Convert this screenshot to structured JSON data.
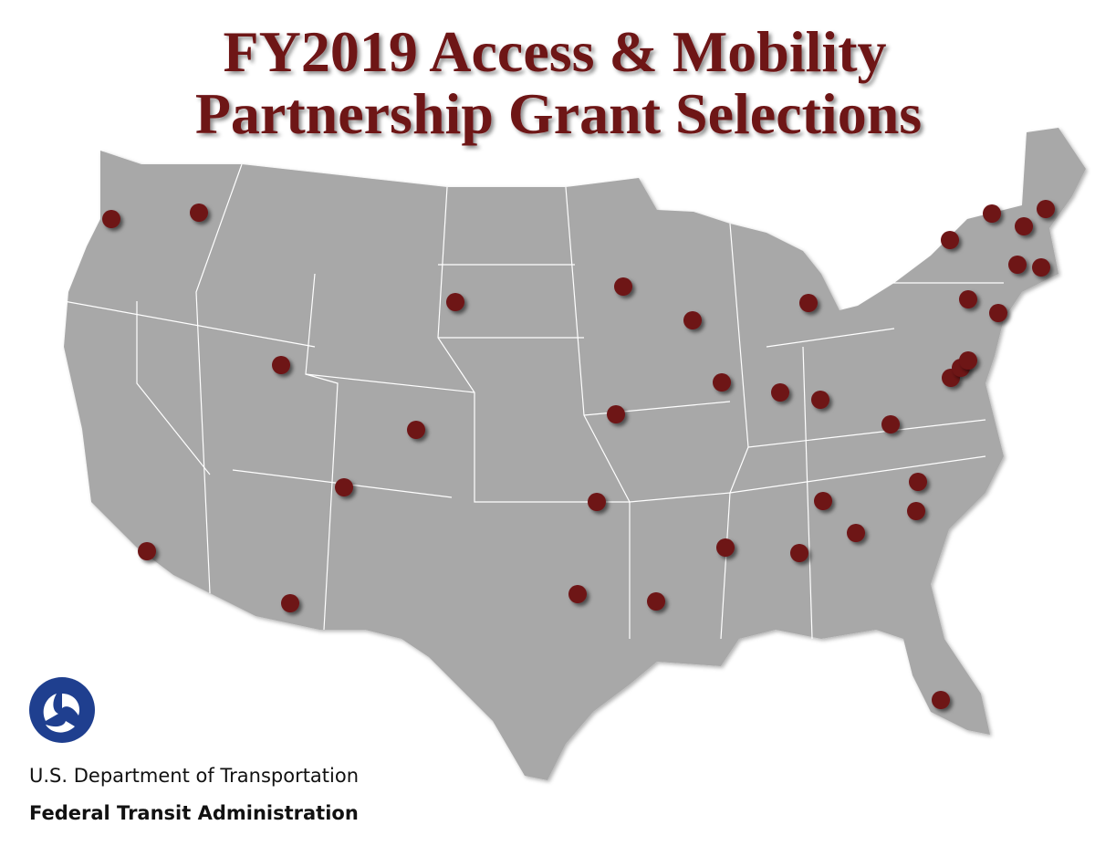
{
  "header": {
    "title_lines": [
      "FY2019 Access & Mobility",
      "Partnership Grant Selections"
    ]
  },
  "footer": {
    "department": "U.S. Department of Transportation",
    "agency": "Federal Transit Administration"
  }
}
